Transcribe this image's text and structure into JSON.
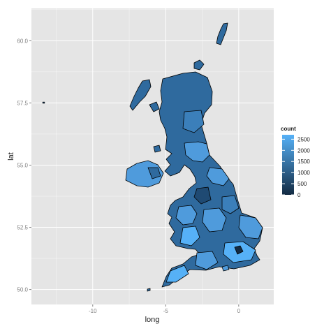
{
  "chart_data": {
    "type": "choropleth map",
    "xlabel": "long",
    "ylabel": "lat",
    "xlim": [
      -14.2,
      2.4
    ],
    "ylim": [
      49.4,
      61.3
    ],
    "x_ticks": [
      -10,
      -5,
      0
    ],
    "x_tick_labels": [
      "-10",
      "-5",
      "0"
    ],
    "y_ticks": [
      50.0,
      52.5,
      55.0,
      57.5,
      60.0
    ],
    "y_tick_labels": [
      "50.0",
      "52.5",
      "55.0",
      "57.5",
      "60.0"
    ],
    "grid": true,
    "legend": {
      "title": "count",
      "position": "right",
      "breaks": [
        2500,
        2000,
        1500,
        1000,
        500,
        0
      ],
      "break_labels": [
        "2500",
        "2000",
        "1500",
        "1000",
        "500",
        "0"
      ],
      "range": [
        0,
        2700
      ],
      "low_color": "#132B43",
      "high_color": "#56B1F7"
    },
    "colors": {
      "panel": "#E5E5E5",
      "gridline": "#FFFFFF",
      "border": "#000000"
    }
  }
}
